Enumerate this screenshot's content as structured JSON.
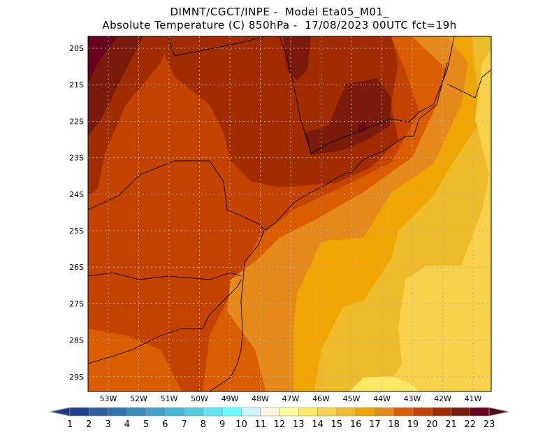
{
  "title": {
    "line1": "DIMNT/CGCT/INPE -  Model Eta05_M01_",
    "line2": "Absolute Temperature (C) 850hPa -  17/08/2023 00UTC fct=19h"
  },
  "map": {
    "lat_labels": [
      "20S",
      "21S",
      "22S",
      "23S",
      "24S",
      "25S",
      "26S",
      "27S",
      "28S",
      "29S"
    ],
    "lon_labels": [
      "53W",
      "52W",
      "51W",
      "50W",
      "49W",
      "48W",
      "47W",
      "46W",
      "45W",
      "44W",
      "43W",
      "42W",
      "41W"
    ]
  },
  "colorbar": {
    "labels": [
      "1",
      "2",
      "3",
      "4",
      "5",
      "6",
      "7",
      "8",
      "9",
      "10",
      "11",
      "12",
      "13",
      "14",
      "15",
      "16",
      "17",
      "18",
      "19",
      "20",
      "21",
      "22",
      "23"
    ],
    "low_color": "#1c3a8a",
    "high_color": "#4a1010",
    "colors": [
      "#1f3f8f",
      "#2a5fa0",
      "#2f75ad",
      "#3a8bbb",
      "#40a2c8",
      "#47b7d6",
      "#52cde0",
      "#5fe6ef",
      "#66ffff",
      "#ccf4ff",
      "#fff6e0",
      "#ffff99",
      "#ffe864",
      "#f7d24a",
      "#eebc2a",
      "#f0a500",
      "#e58a1a",
      "#da5d00",
      "#c54300",
      "#a02c00",
      "#7a1a0a",
      "#6a0020"
    ]
  }
}
